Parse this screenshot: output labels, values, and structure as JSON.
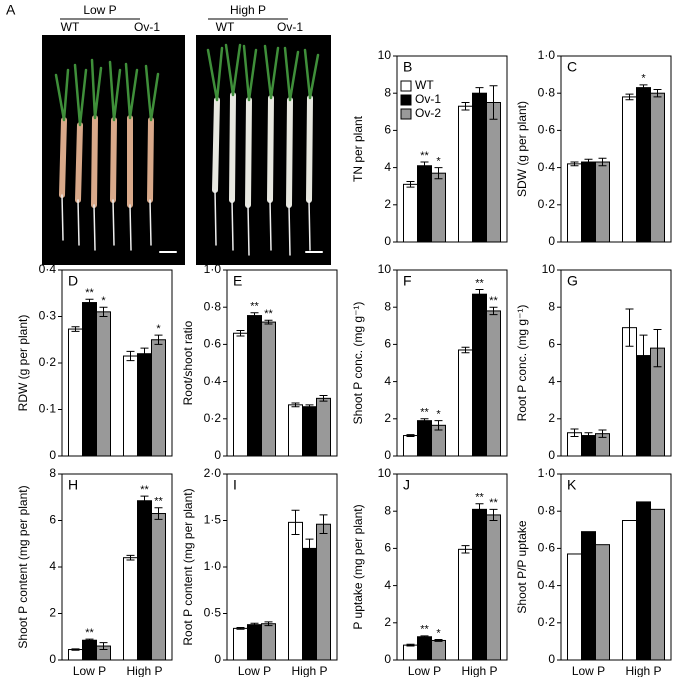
{
  "photo": {
    "label": "A",
    "groups": [
      {
        "title": "Low P",
        "lines": [
          "WT",
          "Ov-1"
        ]
      },
      {
        "title": "High P",
        "lines": [
          "WT",
          "Ov-1"
        ]
      }
    ]
  },
  "chart_data": [
    {
      "type": "bar",
      "label": "B",
      "ylabel": "TN per plant",
      "categories": [
        null,
        null
      ],
      "legend": "upper left",
      "ylim": [
        0,
        10
      ],
      "yticks": [
        0,
        2,
        4,
        6,
        8,
        10
      ],
      "series": [
        {
          "name": "WT",
          "color": "#ffffff",
          "values": [
            3.1,
            7.3
          ],
          "errors": [
            0.15,
            0.2
          ],
          "sig": [
            null,
            null
          ]
        },
        {
          "name": "Ov-1",
          "color": "#000000",
          "values": [
            4.1,
            8.0
          ],
          "errors": [
            0.2,
            0.3
          ],
          "sig": [
            "**",
            null
          ]
        },
        {
          "name": "Ov-2",
          "color": "#999999",
          "values": [
            3.7,
            7.5
          ],
          "errors": [
            0.3,
            0.9
          ],
          "sig": [
            "*",
            null
          ]
        }
      ]
    },
    {
      "type": "bar",
      "label": "C",
      "ylabel": "SDW (g per plant)",
      "categories": [
        null,
        null
      ],
      "ylim": [
        0,
        1
      ],
      "yticks": [
        0,
        {
          "value": 0.2,
          "label": "0·2"
        },
        {
          "value": 0.4,
          "label": "0·4"
        },
        {
          "value": 0.6,
          "label": "0·6"
        },
        {
          "value": 0.8,
          "label": "0·8"
        },
        {
          "value": 1.0,
          "label": "1·0"
        }
      ],
      "series": [
        {
          "color": "#ffffff",
          "values": [
            0.42,
            0.78
          ],
          "errors": [
            0.01,
            0.015
          ],
          "sig": [
            null,
            null
          ]
        },
        {
          "color": "#000000",
          "values": [
            0.43,
            0.83
          ],
          "errors": [
            0.015,
            0.015
          ],
          "sig": [
            null,
            "*"
          ]
        },
        {
          "color": "#999999",
          "values": [
            0.43,
            0.8
          ],
          "errors": [
            0.02,
            0.02
          ],
          "sig": [
            null,
            null
          ]
        }
      ]
    },
    {
      "type": "bar",
      "label": "D",
      "ylabel": "RDW (g per plant)",
      "categories": [
        null,
        null
      ],
      "ylim": [
        0,
        0.4
      ],
      "yticks": [
        0,
        {
          "value": 0.1,
          "label": "0·1"
        },
        {
          "value": 0.2,
          "label": "0·2"
        },
        {
          "value": 0.3,
          "label": "0·3"
        },
        {
          "value": 0.4,
          "label": "0·4"
        }
      ],
      "series": [
        {
          "color": "#ffffff",
          "values": [
            0.273,
            0.215
          ],
          "errors": [
            0.005,
            0.01
          ],
          "sig": [
            null,
            null
          ]
        },
        {
          "color": "#000000",
          "values": [
            0.33,
            0.22
          ],
          "errors": [
            0.007,
            0.012
          ],
          "sig": [
            "**",
            null
          ]
        },
        {
          "color": "#999999",
          "values": [
            0.31,
            0.25
          ],
          "errors": [
            0.01,
            0.01
          ],
          "sig": [
            "*",
            "*"
          ]
        }
      ]
    },
    {
      "type": "bar",
      "label": "E",
      "ylabel": "Root/shoot  ratio",
      "categories": [
        null,
        null
      ],
      "ylim": [
        0,
        1
      ],
      "yticks": [
        0,
        {
          "value": 0.2,
          "label": "0·2"
        },
        {
          "value": 0.4,
          "label": "0·4"
        },
        {
          "value": 0.6,
          "label": "0·6"
        },
        {
          "value": 0.8,
          "label": "0·8"
        },
        {
          "value": 1.0,
          "label": "1·0"
        }
      ],
      "series": [
        {
          "color": "#ffffff",
          "values": [
            0.66,
            0.275
          ],
          "errors": [
            0.015,
            0.01
          ],
          "sig": [
            null,
            null
          ]
        },
        {
          "color": "#000000",
          "values": [
            0.755,
            0.265
          ],
          "errors": [
            0.015,
            0.01
          ],
          "sig": [
            "**",
            null
          ]
        },
        {
          "color": "#999999",
          "values": [
            0.72,
            0.31
          ],
          "errors": [
            0.01,
            0.015
          ],
          "sig": [
            "**",
            null
          ]
        }
      ]
    },
    {
      "type": "bar",
      "label": "F",
      "ylabel": "Shoot P conc. (mg g⁻¹)",
      "categories": [
        null,
        null
      ],
      "ylim": [
        0,
        10
      ],
      "yticks": [
        0,
        2,
        4,
        6,
        8,
        10
      ],
      "series": [
        {
          "color": "#ffffff",
          "values": [
            1.1,
            5.7
          ],
          "errors": [
            0.05,
            0.15
          ],
          "sig": [
            null,
            null
          ]
        },
        {
          "color": "#000000",
          "values": [
            1.9,
            8.7
          ],
          "errors": [
            0.1,
            0.25
          ],
          "sig": [
            "**",
            "**"
          ]
        },
        {
          "color": "#999999",
          "values": [
            1.65,
            7.8
          ],
          "errors": [
            0.25,
            0.2
          ],
          "sig": [
            "*",
            "**"
          ]
        }
      ]
    },
    {
      "type": "bar",
      "label": "G",
      "ylabel": "Root P conc. (mg g⁻¹)",
      "categories": [
        null,
        null
      ],
      "ylim": [
        0,
        10
      ],
      "yticks": [
        0,
        2,
        4,
        6,
        8,
        10
      ],
      "series": [
        {
          "color": "#ffffff",
          "values": [
            1.25,
            6.9
          ],
          "errors": [
            0.2,
            1.0
          ],
          "sig": [
            null,
            null
          ]
        },
        {
          "color": "#000000",
          "values": [
            1.1,
            5.4
          ],
          "errors": [
            0.15,
            1.1
          ],
          "sig": [
            null,
            null
          ]
        },
        {
          "color": "#999999",
          "values": [
            1.2,
            5.8
          ],
          "errors": [
            0.2,
            1.0
          ],
          "sig": [
            null,
            null
          ]
        }
      ]
    },
    {
      "type": "bar",
      "label": "H",
      "ylabel": "Shoot P content (mg per plant)",
      "categories": [
        "Low P",
        "High P"
      ],
      "ylim": [
        0,
        8
      ],
      "yticks": [
        0,
        2,
        4,
        6,
        8
      ],
      "series": [
        {
          "color": "#ffffff",
          "values": [
            0.45,
            4.4
          ],
          "errors": [
            0.03,
            0.1
          ],
          "sig": [
            null,
            null
          ]
        },
        {
          "color": "#000000",
          "values": [
            0.85,
            6.85
          ],
          "errors": [
            0.05,
            0.2
          ],
          "sig": [
            "**",
            "**"
          ]
        },
        {
          "color": "#999999",
          "values": [
            0.6,
            6.3
          ],
          "errors": [
            0.15,
            0.25
          ],
          "sig": [
            null,
            "**"
          ]
        }
      ]
    },
    {
      "type": "bar",
      "label": "I",
      "ylabel": "Root P content (mg per plant)",
      "categories": [
        "Low P",
        "High P"
      ],
      "ylim": [
        0,
        2
      ],
      "yticks": [
        0,
        {
          "value": 0.5,
          "label": "0·5"
        },
        {
          "value": 1.0,
          "label": "1·0"
        },
        {
          "value": 1.5,
          "label": "1·5"
        },
        {
          "value": 2.0,
          "label": "2·0"
        }
      ],
      "series": [
        {
          "color": "#ffffff",
          "values": [
            0.34,
            1.48
          ],
          "errors": [
            0.01,
            0.13
          ],
          "sig": [
            null,
            null
          ]
        },
        {
          "color": "#000000",
          "values": [
            0.38,
            1.2
          ],
          "errors": [
            0.015,
            0.1
          ],
          "sig": [
            null,
            null
          ]
        },
        {
          "color": "#999999",
          "values": [
            0.39,
            1.46
          ],
          "errors": [
            0.02,
            0.1
          ],
          "sig": [
            null,
            null
          ]
        }
      ]
    },
    {
      "type": "bar",
      "label": "J",
      "ylabel": "P uptake (mg per plant)",
      "categories": [
        "Low P",
        "High P"
      ],
      "ylim": [
        0,
        10
      ],
      "yticks": [
        0,
        2,
        4,
        6,
        8,
        10
      ],
      "series": [
        {
          "color": "#ffffff",
          "values": [
            0.8,
            5.95
          ],
          "errors": [
            0.05,
            0.2
          ],
          "sig": [
            null,
            null
          ]
        },
        {
          "color": "#000000",
          "values": [
            1.25,
            8.1
          ],
          "errors": [
            0.05,
            0.3
          ],
          "sig": [
            "**",
            "**"
          ]
        },
        {
          "color": "#999999",
          "values": [
            1.05,
            7.8
          ],
          "errors": [
            0.05,
            0.3
          ],
          "sig": [
            "*",
            "**"
          ]
        }
      ]
    },
    {
      "type": "bar",
      "label": "K",
      "ylabel": "Shoot P/P uptake",
      "categories": [
        "Low P",
        "High P"
      ],
      "ylim": [
        0,
        1
      ],
      "yticks": [
        0,
        {
          "value": 0.2,
          "label": "0·2"
        },
        {
          "value": 0.4,
          "label": "0·4"
        },
        {
          "value": 0.6,
          "label": "0·6"
        },
        {
          "value": 0.8,
          "label": "0·8"
        },
        {
          "value": 1.0,
          "label": "1·0"
        }
      ],
      "series": [
        {
          "color": "#ffffff",
          "values": [
            0.57,
            0.75
          ]
        },
        {
          "color": "#000000",
          "values": [
            0.69,
            0.85
          ]
        },
        {
          "color": "#999999",
          "values": [
            0.62,
            0.81
          ]
        }
      ]
    }
  ]
}
